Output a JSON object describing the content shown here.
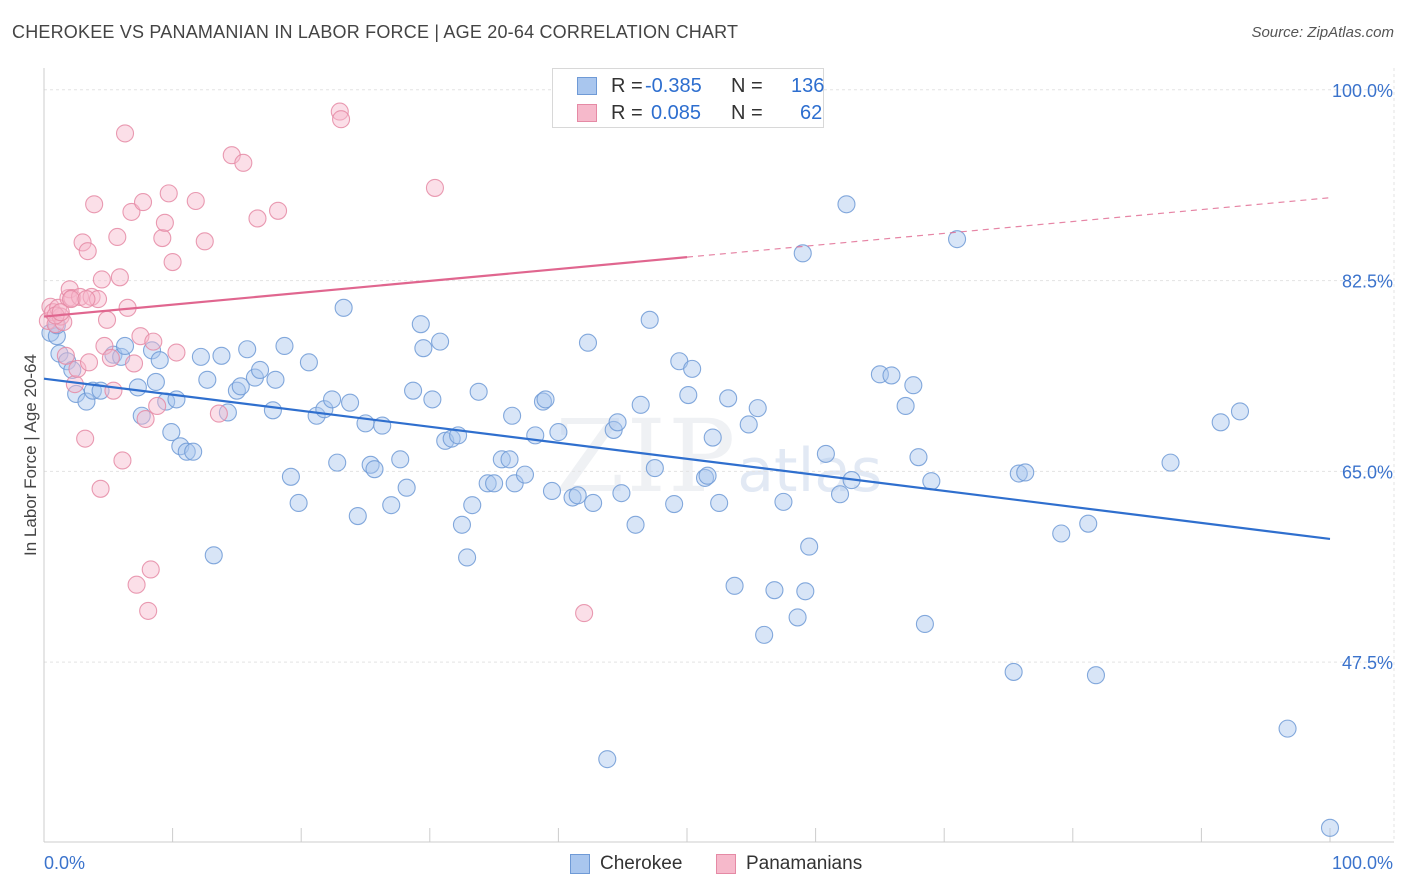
{
  "header": {
    "title": "CHEROKEE VS PANAMANIAN IN LABOR FORCE | AGE 20-64 CORRELATION CHART",
    "source": "Source: ZipAtlas.com"
  },
  "watermark": {
    "zip": "ZIP",
    "atlas": "atlas"
  },
  "legend": {
    "rows": [
      {
        "r_label": "R =",
        "r_value": "-0.385",
        "n_label": "N =",
        "n_value": "136",
        "color": "#a9c6ee",
        "edge": "#6f9ad6"
      },
      {
        "r_label": "R =",
        "r_value": "0.085",
        "n_label": "N =",
        "n_value": "62",
        "color": "#f6b9cb",
        "edge": "#e58aa5"
      }
    ]
  },
  "bottom_legend": [
    {
      "label": "Cherokee",
      "color": "#a9c6ee",
      "edge": "#6f9ad6"
    },
    {
      "label": "Panamanians",
      "color": "#f6b9cb",
      "edge": "#e58aa5"
    }
  ],
  "chart_data": {
    "type": "scatter",
    "title": "CHEROKEE VS PANAMANIAN IN LABOR FORCE | AGE 20-64 CORRELATION CHART",
    "xlabel": "",
    "ylabel": "In Labor Force | Age 20-64",
    "xlim": [
      0,
      100
    ],
    "ylim": [
      31,
      102
    ],
    "x_tick_labels": [
      "0.0%",
      "100.0%"
    ],
    "y_ticks": [
      47.5,
      65.0,
      82.5,
      100.0
    ],
    "y_tick_labels": [
      "47.5%",
      "65.0%",
      "82.5%",
      "100.0%"
    ],
    "grid": true,
    "legend_position": "top-center",
    "series": [
      {
        "name": "Cherokee",
        "color": "#6f9ad6",
        "fill": "#a9c6ee",
        "r": -0.385,
        "n": 136,
        "trend": {
          "x": [
            0,
            100
          ],
          "y": [
            73.5,
            58.8
          ],
          "dashed_from": null
        },
        "points": [
          [
            0.5,
            77.7
          ],
          [
            1.0,
            77.4
          ],
          [
            1.0,
            78.4
          ],
          [
            1.2,
            75.8
          ],
          [
            1.8,
            75.1
          ],
          [
            2.2,
            74.3
          ],
          [
            2.5,
            72.1
          ],
          [
            3.3,
            71.4
          ],
          [
            3.8,
            72.4
          ],
          [
            4.4,
            72.4
          ],
          [
            5.4,
            75.7
          ],
          [
            6.0,
            75.5
          ],
          [
            6.3,
            76.5
          ],
          [
            7.3,
            72.7
          ],
          [
            7.6,
            70.1
          ],
          [
            8.4,
            76.1
          ],
          [
            8.7,
            73.2
          ],
          [
            9.0,
            75.2
          ],
          [
            9.5,
            71.4
          ],
          [
            9.9,
            68.6
          ],
          [
            10.3,
            71.6
          ],
          [
            10.6,
            67.3
          ],
          [
            11.1,
            66.8
          ],
          [
            11.6,
            66.8
          ],
          [
            12.2,
            75.5
          ],
          [
            12.7,
            73.4
          ],
          [
            13.2,
            57.3
          ],
          [
            13.8,
            75.6
          ],
          [
            14.3,
            70.4
          ],
          [
            15.0,
            72.4
          ],
          [
            15.3,
            72.8
          ],
          [
            15.8,
            76.2
          ],
          [
            16.4,
            73.6
          ],
          [
            16.8,
            74.3
          ],
          [
            17.8,
            70.6
          ],
          [
            18.0,
            73.4
          ],
          [
            18.7,
            76.5
          ],
          [
            19.2,
            64.5
          ],
          [
            19.8,
            62.1
          ],
          [
            20.6,
            75.0
          ],
          [
            21.2,
            70.1
          ],
          [
            21.8,
            70.7
          ],
          [
            22.4,
            71.6
          ],
          [
            22.8,
            65.8
          ],
          [
            23.3,
            80.0
          ],
          [
            23.8,
            71.3
          ],
          [
            24.4,
            60.9
          ],
          [
            25.0,
            69.4
          ],
          [
            25.4,
            65.6
          ],
          [
            25.7,
            65.2
          ],
          [
            26.3,
            69.2
          ],
          [
            27.0,
            61.9
          ],
          [
            27.7,
            66.1
          ],
          [
            28.2,
            63.5
          ],
          [
            28.7,
            72.4
          ],
          [
            29.3,
            78.5
          ],
          [
            29.5,
            76.3
          ],
          [
            30.2,
            71.6
          ],
          [
            30.8,
            76.9
          ],
          [
            31.2,
            67.8
          ],
          [
            31.7,
            68.0
          ],
          [
            32.2,
            68.3
          ],
          [
            32.5,
            60.1
          ],
          [
            32.9,
            57.1
          ],
          [
            33.3,
            61.9
          ],
          [
            33.8,
            72.3
          ],
          [
            34.5,
            63.9
          ],
          [
            35.0,
            63.9
          ],
          [
            35.6,
            66.1
          ],
          [
            36.2,
            66.1
          ],
          [
            36.4,
            70.1
          ],
          [
            36.6,
            63.9
          ],
          [
            37.4,
            64.7
          ],
          [
            38.2,
            68.3
          ],
          [
            38.8,
            71.4
          ],
          [
            39.0,
            71.6
          ],
          [
            39.5,
            63.2
          ],
          [
            40.0,
            68.6
          ],
          [
            41.1,
            62.6
          ],
          [
            41.5,
            62.8
          ],
          [
            42.3,
            76.8
          ],
          [
            42.7,
            62.1
          ],
          [
            44.3,
            68.8
          ],
          [
            44.6,
            69.5
          ],
          [
            44.9,
            63.0
          ],
          [
            46.0,
            60.1
          ],
          [
            46.4,
            71.1
          ],
          [
            47.1,
            78.9
          ],
          [
            47.5,
            65.3
          ],
          [
            49.0,
            62.0
          ],
          [
            49.4,
            75.1
          ],
          [
            50.1,
            72.0
          ],
          [
            50.4,
            74.4
          ],
          [
            51.4,
            64.4
          ],
          [
            51.6,
            64.6
          ],
          [
            52.0,
            68.1
          ],
          [
            52.5,
            62.1
          ],
          [
            53.2,
            71.7
          ],
          [
            53.7,
            54.5
          ],
          [
            54.8,
            69.3
          ],
          [
            55.5,
            70.8
          ],
          [
            56.0,
            50.0
          ],
          [
            56.8,
            54.1
          ],
          [
            57.5,
            62.2
          ],
          [
            58.6,
            51.6
          ],
          [
            59.0,
            85.0
          ],
          [
            59.5,
            58.1
          ],
          [
            60.8,
            66.6
          ],
          [
            61.9,
            62.9
          ],
          [
            62.4,
            89.5
          ],
          [
            62.8,
            64.2
          ],
          [
            65.0,
            73.9
          ],
          [
            65.9,
            73.8
          ],
          [
            67.0,
            71.0
          ],
          [
            67.6,
            72.9
          ],
          [
            68.0,
            66.3
          ],
          [
            68.5,
            51.0
          ],
          [
            69.0,
            64.1
          ],
          [
            71.0,
            86.3
          ],
          [
            75.4,
            46.6
          ],
          [
            75.8,
            64.8
          ],
          [
            76.3,
            64.9
          ],
          [
            79.1,
            59.3
          ],
          [
            81.2,
            60.2
          ],
          [
            81.8,
            46.3
          ],
          [
            87.6,
            65.8
          ],
          [
            91.5,
            69.5
          ],
          [
            93.0,
            70.5
          ],
          [
            96.7,
            41.4
          ],
          [
            100.0,
            32.3
          ],
          [
            43.8,
            38.6
          ],
          [
            59.2,
            54.0
          ]
        ]
      },
      {
        "name": "Panamanians",
        "color": "#e58aa5",
        "fill": "#f6b9cb",
        "r": 0.085,
        "n": 62,
        "trend": {
          "x": [
            0,
            100
          ],
          "y": [
            79.2,
            90.1
          ],
          "dashed_from": 50
        },
        "points": [
          [
            0.3,
            78.8
          ],
          [
            0.5,
            80.1
          ],
          [
            0.7,
            79.6
          ],
          [
            0.9,
            78.5
          ],
          [
            1.1,
            80.0
          ],
          [
            1.3,
            79.2
          ],
          [
            1.5,
            78.7
          ],
          [
            1.7,
            75.6
          ],
          [
            1.9,
            80.9
          ],
          [
            2.0,
            81.7
          ],
          [
            2.2,
            80.9
          ],
          [
            2.4,
            73.0
          ],
          [
            2.6,
            74.4
          ],
          [
            2.8,
            81.0
          ],
          [
            3.0,
            86.0
          ],
          [
            3.2,
            68.0
          ],
          [
            3.4,
            85.2
          ],
          [
            3.5,
            75.0
          ],
          [
            3.7,
            81.0
          ],
          [
            3.9,
            89.5
          ],
          [
            4.2,
            80.8
          ],
          [
            4.4,
            63.4
          ],
          [
            4.5,
            82.6
          ],
          [
            4.7,
            76.5
          ],
          [
            4.9,
            78.9
          ],
          [
            5.2,
            75.4
          ],
          [
            5.4,
            72.4
          ],
          [
            5.7,
            86.5
          ],
          [
            5.9,
            82.8
          ],
          [
            6.1,
            66.0
          ],
          [
            6.3,
            96.0
          ],
          [
            6.5,
            80.0
          ],
          [
            6.8,
            88.8
          ],
          [
            7.0,
            74.9
          ],
          [
            7.2,
            54.6
          ],
          [
            7.5,
            77.4
          ],
          [
            7.7,
            89.7
          ],
          [
            7.9,
            69.8
          ],
          [
            8.1,
            52.2
          ],
          [
            8.3,
            56.0
          ],
          [
            8.5,
            76.9
          ],
          [
            8.8,
            71.0
          ],
          [
            9.2,
            86.4
          ],
          [
            9.4,
            87.8
          ],
          [
            9.7,
            90.5
          ],
          [
            10.0,
            84.2
          ],
          [
            10.3,
            75.9
          ],
          [
            11.8,
            89.8
          ],
          [
            12.5,
            86.1
          ],
          [
            13.6,
            70.3
          ],
          [
            14.6,
            94.0
          ],
          [
            15.5,
            93.3
          ],
          [
            16.6,
            88.2
          ],
          [
            18.2,
            88.9
          ],
          [
            23.0,
            98.0
          ],
          [
            23.1,
            97.3
          ],
          [
            30.4,
            91.0
          ],
          [
            42.0,
            52.0
          ],
          [
            0.9,
            79.3
          ],
          [
            1.3,
            79.6
          ],
          [
            2.1,
            80.8
          ],
          [
            3.3,
            80.8
          ]
        ]
      }
    ]
  }
}
